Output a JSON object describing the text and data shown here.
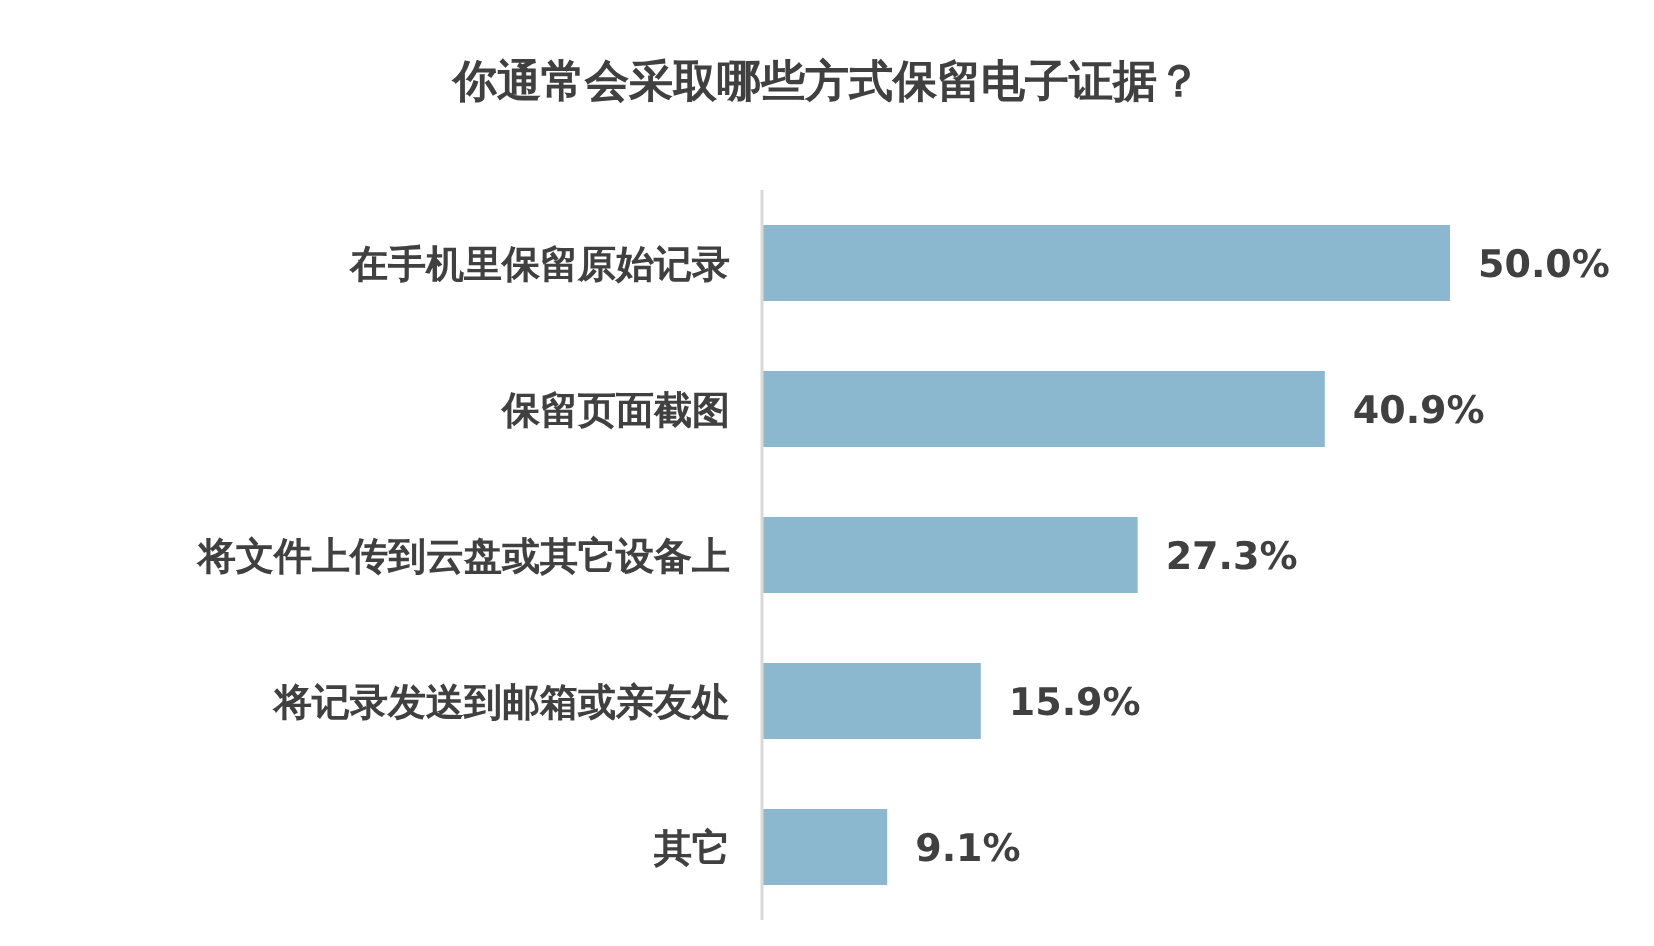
{
  "chart_data": {
    "type": "bar",
    "orientation": "horizontal",
    "title": "你通常会采取哪些方式保留电子证据？",
    "categories": [
      "在手机里保留原始记录",
      "保留页面截图",
      "将文件上传到云盘或其它设备上",
      "将记录发送到邮箱或亲友处",
      "其它"
    ],
    "values": [
      50.0,
      40.9,
      27.3,
      15.9,
      9.1
    ],
    "value_labels": [
      "50.0%",
      "40.9%",
      "27.3%",
      "15.9%",
      "9.1%"
    ],
    "color": "#8cb8cf"
  }
}
